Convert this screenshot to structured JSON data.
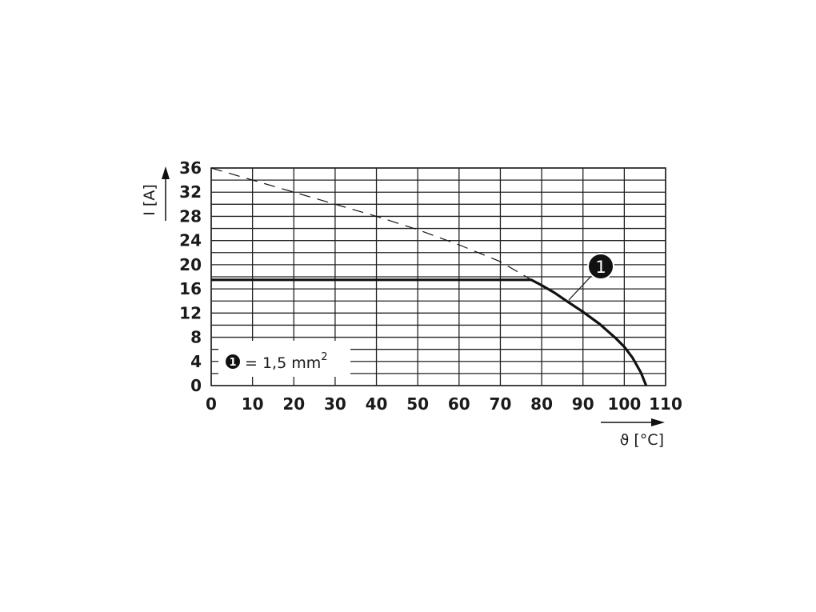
{
  "chart_data": {
    "type": "line",
    "xlabel": "ϑ [°C]",
    "ylabel": "I [A]",
    "xlim": [
      0,
      110
    ],
    "ylim": [
      0,
      36
    ],
    "x_ticks": [
      0,
      10,
      20,
      30,
      40,
      50,
      60,
      70,
      80,
      90,
      100,
      110
    ],
    "y_ticks": [
      0,
      4,
      8,
      12,
      16,
      20,
      24,
      28,
      32,
      36
    ],
    "y_minor_step": 2,
    "grid": true,
    "legend": {
      "marker": "1",
      "text": "= 1,5 mm",
      "superscript": "2",
      "placement": "bottom-left"
    },
    "series": [
      {
        "label_marker": "1",
        "style": "solid",
        "color": "#111111",
        "x": [
          0,
          77.5,
          80,
          83,
          86,
          90,
          94,
          98,
          100,
          102,
          104,
          105.3
        ],
        "y": [
          17.5,
          17.5,
          16.6,
          15.4,
          14.0,
          12.2,
          10.2,
          7.8,
          6.4,
          4.6,
          2.2,
          0
        ]
      },
      {
        "style": "dashed",
        "color": "#111111",
        "x": [
          0,
          10,
          20,
          30,
          40,
          50,
          60,
          70,
          77.5
        ],
        "y": [
          36,
          34,
          32,
          30,
          28,
          25.8,
          23.3,
          20.5,
          17.5
        ]
      }
    ]
  }
}
